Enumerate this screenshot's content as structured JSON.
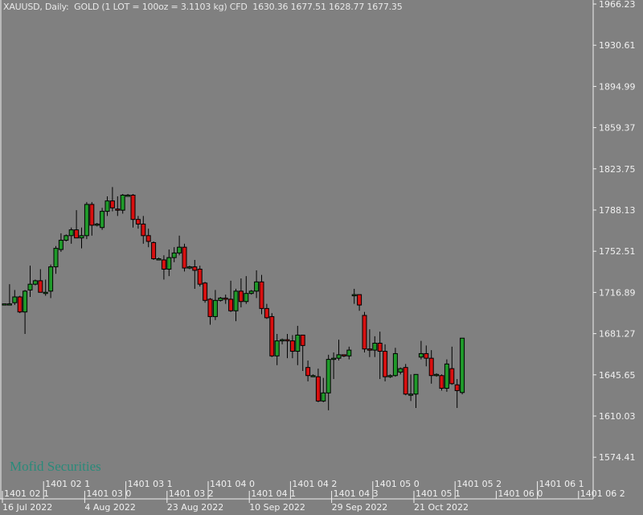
{
  "header": {
    "symbol": "XAUUSD, Daily:",
    "description": "GOLD (1 LOT = 100oz = 3.1103 kg) CFD",
    "ohlc": "1630.36 1677.51 1628.77 1677.35"
  },
  "watermark": "Mofid Securities",
  "chart_data": {
    "type": "candlestick",
    "timeframe": "Daily",
    "symbol": "XAUUSD",
    "grid": false,
    "colors": {
      "background": "#808080",
      "bull": "#1f9a2a",
      "bear": "#d81010",
      "outline": "#000000",
      "axis": "#f0f0f0"
    },
    "ylim": [
      1565,
      1970
    ],
    "y_ticks": [
      "1966.23",
      "1930.61",
      "1894.99",
      "1859.37",
      "1823.75",
      "1788.13",
      "1752.51",
      "1716.89",
      "1681.27",
      "1645.65",
      "1610.03",
      "1574.41"
    ],
    "x_ticks": [
      {
        "index": 0,
        "label": "16 Jul 2022"
      },
      {
        "index": 16,
        "label": "4 Aug 2022"
      },
      {
        "index": 32,
        "label": "23 Aug 2022"
      },
      {
        "index": 48,
        "label": "10 Sep 2022"
      },
      {
        "index": 64,
        "label": "29 Sep 2022"
      },
      {
        "index": 80,
        "label": "21 Oct 2022"
      }
    ],
    "secondary_x_ticks": [
      "1401 02 1",
      "1401 02 1",
      "1401 03 0",
      "1401 03 1",
      "1401 03 2",
      "1401 04 0",
      "1401 04 1",
      "1401 04 2",
      "1401 04 3",
      "1401 05 0",
      "1401 05 1",
      "1401 05 2",
      "1401 06 0",
      "1401 06 1",
      "1401 06 2"
    ],
    "ohlc": [
      [
        1707,
        1707,
        1706,
        1707
      ],
      [
        1707,
        1724,
        1706,
        1707
      ],
      [
        1708,
        1719,
        1706,
        1713
      ],
      [
        1713,
        1714,
        1699,
        1700
      ],
      [
        1700,
        1719,
        1681,
        1718
      ],
      [
        1719,
        1740,
        1713,
        1724
      ],
      [
        1724,
        1728,
        1723,
        1727
      ],
      [
        1727,
        1737,
        1717,
        1717
      ],
      [
        1717,
        1728,
        1714,
        1717
      ],
      [
        1718,
        1741,
        1712,
        1739
      ],
      [
        1739,
        1757,
        1733,
        1755
      ],
      [
        1754,
        1768,
        1752,
        1762
      ],
      [
        1762,
        1767,
        1761,
        1766
      ],
      [
        1766,
        1773,
        1759,
        1771
      ],
      [
        1771,
        1788,
        1764,
        1764
      ],
      [
        1764,
        1773,
        1755,
        1766
      ],
      [
        1766,
        1795,
        1763,
        1793
      ],
      [
        1793,
        1795,
        1766,
        1775
      ],
      [
        1775,
        1777,
        1774,
        1776
      ],
      [
        1773,
        1790,
        1771,
        1787
      ],
      [
        1787,
        1800,
        1783,
        1796
      ],
      [
        1796,
        1808,
        1787,
        1790
      ],
      [
        1789,
        1800,
        1783,
        1788
      ],
      [
        1788,
        1802,
        1785,
        1801
      ],
      [
        1801,
        1802,
        1800,
        1801
      ],
      [
        1801,
        1802,
        1773,
        1780
      ],
      [
        1780,
        1783,
        1772,
        1776
      ],
      [
        1776,
        1783,
        1759,
        1766
      ],
      [
        1766,
        1772,
        1756,
        1761
      ],
      [
        1760,
        1761,
        1745,
        1746
      ],
      [
        1746,
        1747,
        1745,
        1746
      ],
      [
        1745,
        1749,
        1728,
        1737
      ],
      [
        1737,
        1754,
        1731,
        1747
      ],
      [
        1747,
        1756,
        1743,
        1751
      ],
      [
        1751,
        1766,
        1749,
        1756
      ],
      [
        1756,
        1759,
        1735,
        1738
      ],
      [
        1738,
        1740,
        1737,
        1739
      ],
      [
        1739,
        1745,
        1720,
        1736
      ],
      [
        1737,
        1740,
        1722,
        1724
      ],
      [
        1725,
        1726,
        1708,
        1710
      ],
      [
        1711,
        1712,
        1689,
        1696
      ],
      [
        1696,
        1719,
        1693,
        1710
      ],
      [
        1710,
        1713,
        1709,
        1712
      ],
      [
        1712,
        1715,
        1707,
        1711
      ],
      [
        1711,
        1727,
        1700,
        1701
      ],
      [
        1701,
        1720,
        1692,
        1718
      ],
      [
        1718,
        1729,
        1704,
        1709
      ],
      [
        1709,
        1731,
        1707,
        1716
      ],
      [
        1716,
        1719,
        1715,
        1718
      ],
      [
        1718,
        1736,
        1712,
        1726
      ],
      [
        1726,
        1732,
        1698,
        1703
      ],
      [
        1703,
        1707,
        1694,
        1695
      ],
      [
        1696,
        1699,
        1661,
        1662
      ],
      [
        1662,
        1681,
        1654,
        1675
      ],
      [
        1675,
        1677,
        1672,
        1676
      ],
      [
        1676,
        1681,
        1660,
        1675
      ],
      [
        1675,
        1680,
        1660,
        1666
      ],
      [
        1666,
        1688,
        1654,
        1680
      ],
      [
        1680,
        1680,
        1649,
        1671
      ],
      [
        1652,
        1658,
        1640,
        1645
      ],
      [
        1645,
        1646,
        1644,
        1645
      ],
      [
        1644,
        1651,
        1622,
        1623
      ],
      [
        1623,
        1643,
        1622,
        1630
      ],
      [
        1630,
        1663,
        1615,
        1659
      ],
      [
        1659,
        1665,
        1642,
        1660
      ],
      [
        1660,
        1676,
        1658,
        1663
      ],
      [
        1663,
        1663,
        1661,
        1662
      ],
      [
        1662,
        1670,
        1659,
        1667
      ],
      [
        1715,
        1720,
        1707,
        1715
      ],
      [
        1715,
        1715,
        1701,
        1706
      ],
      [
        1697,
        1700,
        1665,
        1668
      ],
      [
        1668,
        1685,
        1661,
        1667
      ],
      [
        1667,
        1679,
        1661,
        1673
      ],
      [
        1673,
        1683,
        1642,
        1666
      ],
      [
        1666,
        1672,
        1640,
        1644
      ],
      [
        1644,
        1646,
        1643,
        1645
      ],
      [
        1645,
        1669,
        1644,
        1664
      ],
      [
        1648,
        1652,
        1646,
        1651
      ],
      [
        1652,
        1655,
        1628,
        1629
      ],
      [
        1629,
        1646,
        1623,
        1629
      ],
      [
        1629,
        1646,
        1617,
        1646
      ],
      [
        1661,
        1675,
        1659,
        1664
      ],
      [
        1664,
        1671,
        1653,
        1660
      ],
      [
        1660,
        1667,
        1638,
        1645
      ],
      [
        1645,
        1647,
        1644,
        1646
      ],
      [
        1645,
        1646,
        1632,
        1634
      ],
      [
        1634,
        1659,
        1631,
        1655
      ],
      [
        1651,
        1670,
        1637,
        1638
      ],
      [
        1637,
        1642,
        1617,
        1632
      ],
      [
        1630.36,
        1677.51,
        1628.77,
        1677.35
      ]
    ]
  }
}
